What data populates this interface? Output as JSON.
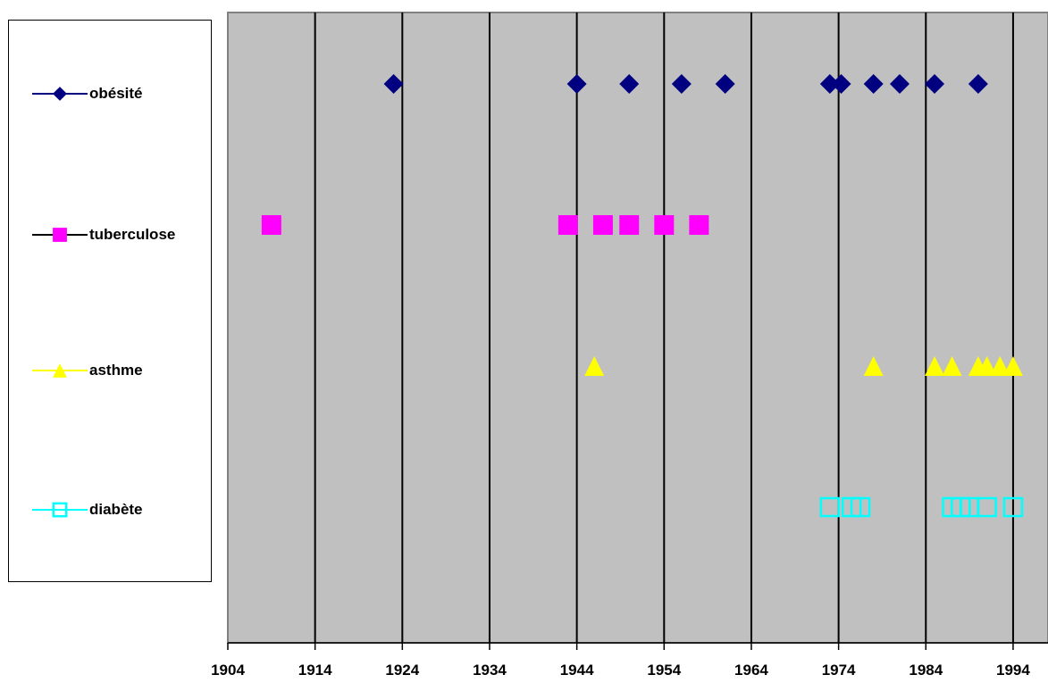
{
  "chart_data": {
    "type": "scatter",
    "title": "",
    "xlabel": "",
    "ylabel": "",
    "xlim": [
      1904,
      1998
    ],
    "x_ticks": [
      1904,
      1914,
      1924,
      1934,
      1944,
      1954,
      1964,
      1974,
      1984,
      1994
    ],
    "x_tick_labels": [
      "1904",
      "1914",
      "1924",
      "1934",
      "1944",
      "1954",
      "1964",
      "1974",
      "1984",
      "1994"
    ],
    "grid": "vertical",
    "legend_position": "left",
    "plot_background": "#c0c0c0",
    "series": [
      {
        "name": "obésité",
        "marker": "diamond",
        "color": "#000080",
        "line_color": "#000080",
        "level": 1,
        "x": [
          1923,
          1944,
          1950,
          1956,
          1961,
          1973,
          1974.3,
          1978,
          1981,
          1985,
          1990
        ]
      },
      {
        "name": "tuberculose",
        "marker": "square",
        "color": "#ff00ff",
        "line_color": "#000000",
        "level": 2,
        "x": [
          1909,
          1943,
          1947,
          1950,
          1954,
          1958
        ]
      },
      {
        "name": "asthme",
        "marker": "triangle",
        "color": "#ffff00",
        "line_color": "#ffff00",
        "level": 3,
        "x": [
          1946,
          1978,
          1985,
          1987,
          1990,
          1991,
          1992.5,
          1994
        ]
      },
      {
        "name": "diabète",
        "marker": "square-open",
        "color": "#00ffff",
        "line_color": "#00ffff",
        "level": 4,
        "x": [
          1973,
          1975.5,
          1976.5,
          1987,
          1988,
          1989,
          1991,
          1994
        ]
      }
    ]
  }
}
